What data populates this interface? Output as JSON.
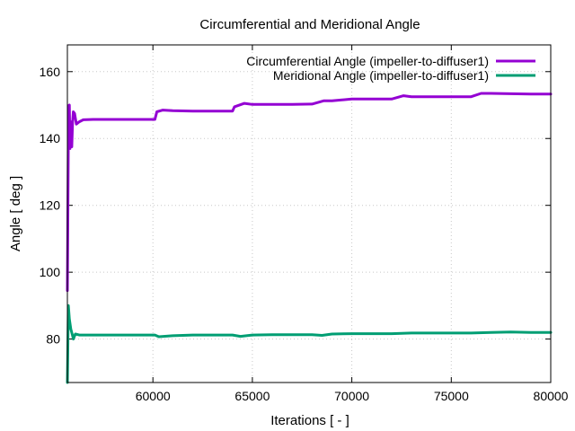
{
  "chart_data": {
    "type": "line",
    "title": "Circumferential and Meridional Angle",
    "xlabel": "Iterations [ - ]",
    "ylabel": "Angle [ deg ]",
    "xlim": [
      55700,
      80000
    ],
    "ylim": [
      67,
      168
    ],
    "xticks": [
      60000,
      65000,
      70000,
      75000,
      80000
    ],
    "xtick_labels": [
      "60000",
      "65000",
      "70000",
      "75000",
      "80000"
    ],
    "yticks": [
      80,
      100,
      120,
      140,
      160
    ],
    "ytick_labels": [
      "80",
      "100",
      "120",
      "140",
      "160"
    ],
    "grid": true,
    "legend_position": "top-right",
    "series": [
      {
        "name": "Circumferential Angle (impeller-to-diffuser1)",
        "color": "#9400d3",
        "points": [
          [
            55700,
            94.5
          ],
          [
            55760,
            149.8
          ],
          [
            55800,
            150
          ],
          [
            55830,
            137
          ],
          [
            55870,
            145
          ],
          [
            55920,
            137.5
          ],
          [
            55960,
            145
          ],
          [
            56000,
            148
          ],
          [
            56060,
            147.5
          ],
          [
            56150,
            144.3
          ],
          [
            56300,
            145
          ],
          [
            56500,
            145.6
          ],
          [
            57000,
            145.7
          ],
          [
            58000,
            145.7
          ],
          [
            59000,
            145.7
          ],
          [
            60100,
            145.7
          ],
          [
            60200,
            148
          ],
          [
            60500,
            148.5
          ],
          [
            61000,
            148.3
          ],
          [
            62000,
            148.2
          ],
          [
            63000,
            148.2
          ],
          [
            64000,
            148.2
          ],
          [
            64100,
            149.5
          ],
          [
            64600,
            150.5
          ],
          [
            65000,
            150.2
          ],
          [
            66000,
            150.2
          ],
          [
            67000,
            150.2
          ],
          [
            68000,
            150.3
          ],
          [
            68600,
            151.3
          ],
          [
            69000,
            151.3
          ],
          [
            70000,
            151.8
          ],
          [
            71000,
            151.8
          ],
          [
            72000,
            151.8
          ],
          [
            72600,
            152.8
          ],
          [
            73000,
            152.5
          ],
          [
            74000,
            152.5
          ],
          [
            76000,
            152.5
          ],
          [
            76500,
            153.5
          ],
          [
            77000,
            153.5
          ],
          [
            78000,
            153.4
          ],
          [
            79000,
            153.3
          ],
          [
            80000,
            153.3
          ]
        ]
      },
      {
        "name": "Meridional Angle (impeller-to-diffuser1)",
        "color": "#009e73",
        "points": [
          [
            55700,
            67
          ],
          [
            55750,
            90
          ],
          [
            55800,
            86
          ],
          [
            55870,
            83
          ],
          [
            55960,
            81
          ],
          [
            56000,
            80
          ],
          [
            56100,
            81.5
          ],
          [
            56300,
            81.2
          ],
          [
            57000,
            81.2
          ],
          [
            58000,
            81.2
          ],
          [
            59000,
            81.2
          ],
          [
            60100,
            81.2
          ],
          [
            60300,
            80.7
          ],
          [
            61000,
            81
          ],
          [
            62000,
            81.2
          ],
          [
            63000,
            81.2
          ],
          [
            64000,
            81.2
          ],
          [
            64400,
            80.8
          ],
          [
            65000,
            81.2
          ],
          [
            66000,
            81.3
          ],
          [
            67000,
            81.3
          ],
          [
            68000,
            81.3
          ],
          [
            68500,
            81.1
          ],
          [
            69000,
            81.5
          ],
          [
            70000,
            81.6
          ],
          [
            72000,
            81.6
          ],
          [
            73000,
            81.8
          ],
          [
            74000,
            81.8
          ],
          [
            76000,
            81.8
          ],
          [
            77000,
            82
          ],
          [
            78000,
            82.1
          ],
          [
            79000,
            82
          ],
          [
            80000,
            82
          ]
        ]
      }
    ]
  }
}
